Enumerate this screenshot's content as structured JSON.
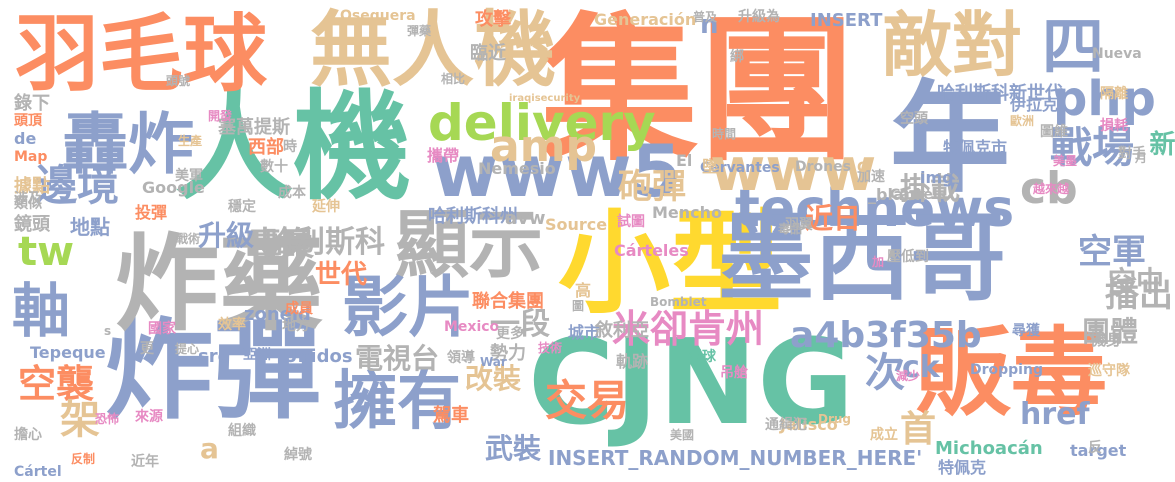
{
  "words": [
    {
      "text": "集團",
      "color": "#fc8d62"
    },
    {
      "text": "人機",
      "color": "#66c2a5"
    },
    {
      "text": "小型",
      "color": "#ffd92f"
    },
    {
      "text": "CJNG",
      "color": "#66c2a5"
    },
    {
      "text": "炸彈",
      "color": "#8da0cb"
    },
    {
      "text": "炸藥",
      "color": "#b3b3b3"
    },
    {
      "text": "墨西哥",
      "color": "#8da0cb"
    },
    {
      "text": "販毒",
      "color": "#fc8d62"
    },
    {
      "text": "羽毛球",
      "color": "#fc8d62"
    },
    {
      "text": "無人機",
      "color": "#e5c494"
    },
    {
      "text": "年",
      "color": "#8da0cb"
    },
    {
      "text": "轟炸",
      "color": "#8da0cb"
    },
    {
      "text": "敵對",
      "color": "#e5c494"
    },
    {
      "text": "顯示",
      "color": "#b3b3b3"
    },
    {
      "text": "影片",
      "color": "#8da0cb"
    },
    {
      "text": "擁有",
      "color": "#8da0cb"
    },
    {
      "text": "www5",
      "color": "#8da0cb"
    },
    {
      "text": "technews",
      "color": "#8da0cb"
    },
    {
      "text": "www",
      "color": "#e5c494"
    },
    {
      "text": "軸",
      "color": "#8da0cb"
    },
    {
      "text": "四",
      "color": "#8da0cb"
    },
    {
      "text": "delivery",
      "color": "#a6d854"
    },
    {
      "text": "交易",
      "color": "#fc8d62"
    },
    {
      "text": "米卻肯州",
      "color": "#e78ac3"
    },
    {
      "text": "php",
      "color": "#8da0cb"
    },
    {
      "text": "戰場",
      "color": "#8da0cb"
    },
    {
      "text": "邊境",
      "color": "#8da0cb"
    },
    {
      "text": "amp",
      "color": "#e5c494"
    },
    {
      "text": "cb",
      "color": "#b3b3b3"
    },
    {
      "text": "tw",
      "color": "#a6d854"
    },
    {
      "text": "a4b3f35b",
      "color": "#8da0cb"
    },
    {
      "text": "空襲",
      "color": "#fc8d62"
    },
    {
      "text": "砲彈",
      "color": "#e5c494"
    },
    {
      "text": "一段",
      "color": "#b3b3b3"
    },
    {
      "text": "空軍",
      "color": "#8da0cb"
    },
    {
      "text": "播出",
      "color": "#b3b3b3"
    },
    {
      "text": "首",
      "color": "#e5c494"
    },
    {
      "text": "毒梟",
      "color": "#b3b3b3"
    },
    {
      "text": "哈利斯科",
      "color": "#b3b3b3"
    },
    {
      "text": "升級",
      "color": "#8da0cb"
    },
    {
      "text": "近日",
      "color": "#fc8d62"
    },
    {
      "text": "掛載",
      "color": "#b3b3b3"
    },
    {
      "text": "新",
      "color": "#66c2a5"
    },
    {
      "text": "團體",
      "color": "#b3b3b3"
    },
    {
      "text": "空中",
      "color": "#b3b3b3"
    },
    {
      "text": "次",
      "color": "#8da0cb"
    },
    {
      "text": "ck",
      "color": "#8da0cb"
    },
    {
      "text": "架",
      "color": "#e5c494"
    },
    {
      "text": "世代",
      "color": "#fc8d62"
    },
    {
      "text": "電視台",
      "color": "#b3b3b3"
    },
    {
      "text": "武裝",
      "color": "#8da0cb"
    },
    {
      "text": "改裝",
      "color": "#e5c494"
    },
    {
      "text": "href",
      "color": "#8da0cb"
    },
    {
      "text": "n",
      "color": "#8da0cb"
    },
    {
      "text": "a",
      "color": "#e5c494"
    },
    {
      "text": "INSERT_RANDOM_NUMBER_HERE'",
      "color": "#8da0cb"
    },
    {
      "text": "哈利斯科新世代",
      "color": "#8da0cb"
    },
    {
      "text": "哈利斯科州",
      "color": "#8da0cb"
    },
    {
      "text": "avw",
      "color": "#b3b3b3"
    },
    {
      "text": "Michoacán",
      "color": "#66c2a5"
    },
    {
      "text": "zoneid",
      "color": "#8da0cb"
    },
    {
      "text": "src",
      "color": "#8da0cb"
    },
    {
      "text": "Unidos",
      "color": "#8da0cb"
    },
    {
      "text": "Tepeque",
      "color": "#8da0cb"
    },
    {
      "text": "INSERT",
      "color": "#8da0cb"
    },
    {
      "text": "Generación",
      "color": "#e5c494"
    },
    {
      "text": "img",
      "color": "#8da0cb"
    },
    {
      "text": "_blank'",
      "color": "#b3b3b3"
    },
    {
      "text": "target",
      "color": "#8da0cb"
    },
    {
      "text": "Jalisco",
      "color": "#e5c494"
    },
    {
      "text": "勢力",
      "color": "#b3b3b3"
    },
    {
      "text": "城市",
      "color": "#8da0cb"
    },
    {
      "text": "聯合集團",
      "color": "#fc8d62"
    },
    {
      "text": "地點",
      "color": "#8da0cb"
    },
    {
      "text": "錄下",
      "color": "#b3b3b3"
    },
    {
      "text": "攻擊",
      "color": "#fc8d62"
    },
    {
      "text": "臨近",
      "color": "#b3b3b3"
    },
    {
      "text": "塞萬提斯",
      "color": "#b3b3b3"
    },
    {
      "text": "西部",
      "color": "#fc8d62"
    },
    {
      "text": "伊拉克",
      "color": "#8da0cb"
    },
    {
      "text": "特佩克市",
      "color": "#8da0cb"
    },
    {
      "text": "特佩克",
      "color": "#8da0cb"
    },
    {
      "text": "據點",
      "color": "#e5c494"
    },
    {
      "text": "投彈",
      "color": "#fc8d62"
    },
    {
      "text": "鏡頭",
      "color": "#b3b3b3"
    },
    {
      "text": "敘利亞",
      "color": "#b3b3b3"
    },
    {
      "text": "高",
      "color": "#e5c494"
    },
    {
      "text": "駕車",
      "color": "#fc8d62"
    },
    {
      "text": "Source",
      "color": "#e5c494"
    },
    {
      "text": "Cárteles",
      "color": "#e78ac3"
    },
    {
      "text": "Mencho",
      "color": "#b3b3b3"
    },
    {
      "text": "Nemesio",
      "color": "#b3b3b3"
    },
    {
      "text": "El",
      "color": "#b3b3b3"
    },
    {
      "text": "Cervantes",
      "color": "#8da0cb"
    },
    {
      "text": "Drones",
      "color": "#b3b3b3"
    },
    {
      "text": "Google",
      "color": "#b3b3b3"
    },
    {
      "text": "Map",
      "color": "#fc8d62"
    },
    {
      "text": "de",
      "color": "#8da0cb"
    },
    {
      "text": "Cártel",
      "color": "#8da0cb"
    },
    {
      "text": "Oseguera",
      "color": "#e5c494"
    },
    {
      "text": "Nueva",
      "color": "#b3b3b3"
    },
    {
      "text": "Cartels",
      "color": "#b3b3b3"
    },
    {
      "text": "Mexico",
      "color": "#e78ac3"
    },
    {
      "text": "Bomblet",
      "color": "#b3b3b3"
    },
    {
      "text": "Dropping",
      "color": "#8da0cb"
    },
    {
      "text": "War",
      "color": "#8da0cb"
    },
    {
      "text": "Drug",
      "color": "#e5c494"
    },
    {
      "text": "iraqisecurity",
      "color": "#e5c494"
    },
    {
      "text": "機身",
      "color": "#b3b3b3"
    },
    {
      "text": "巡守隊",
      "color": "#e5c494"
    },
    {
      "text": "尋獲",
      "color": "#8da0cb"
    },
    {
      "text": "羽翼",
      "color": "#b3b3b3"
    },
    {
      "text": "羽球",
      "color": "#66c2a5"
    },
    {
      "text": "軌跡",
      "color": "#b3b3b3"
    },
    {
      "text": "試圖",
      "color": "#e78ac3"
    },
    {
      "text": "墜",
      "color": "#e5c494"
    },
    {
      "text": "攜帶",
      "color": "#e78ac3"
    },
    {
      "text": "更多",
      "color": "#b3b3b3"
    },
    {
      "text": "領導",
      "color": "#b3b3b3"
    },
    {
      "text": "亞洲",
      "color": "#8da0cb"
    },
    {
      "text": "組織",
      "color": "#b3b3b3"
    },
    {
      "text": "來源",
      "color": "#e78ac3"
    },
    {
      "text": "國家",
      "color": "#e78ac3"
    },
    {
      "text": "成員",
      "color": "#fc8d62"
    },
    {
      "text": "地方",
      "color": "#b3b3b3"
    },
    {
      "text": "效率",
      "color": "#e5c494"
    },
    {
      "text": "穩定",
      "color": "#b3b3b3"
    },
    {
      "text": "延伸",
      "color": "#e5c494"
    },
    {
      "text": "成本",
      "color": "#b3b3b3"
    },
    {
      "text": "數十",
      "color": "#b3b3b3"
    },
    {
      "text": "美軍",
      "color": "#b3b3b3"
    },
    {
      "text": "時",
      "color": "#b3b3b3"
    },
    {
      "text": "類似",
      "color": "#b3b3b3"
    },
    {
      "text": "頭頂",
      "color": "#fc8d62"
    },
    {
      "text": "生產",
      "color": "#e5c494"
    },
    {
      "text": "開發",
      "color": "#e78ac3"
    },
    {
      "text": "頭號",
      "color": "#b3b3b3"
    },
    {
      "text": "相比",
      "color": "#b3b3b3"
    },
    {
      "text": "彈藥",
      "color": "#b3b3b3"
    },
    {
      "text": "普及",
      "color": "#b3b3b3"
    },
    {
      "text": "升級為",
      "color": "#b3b3b3"
    },
    {
      "text": "綁",
      "color": "#b3b3b3"
    },
    {
      "text": "時間",
      "color": "#b3b3b3"
    },
    {
      "text": "歐洲",
      "color": "#e5c494"
    },
    {
      "text": "圖維",
      "color": "#b3b3b3"
    },
    {
      "text": "損耗",
      "color": "#e78ac3"
    },
    {
      "text": "隔離",
      "color": "#e5c494"
    },
    {
      "text": "空頭",
      "color": "#b3b3b3"
    },
    {
      "text": "對手",
      "color": "#b3b3b3"
    },
    {
      "text": "月",
      "color": "#b3b3b3"
    },
    {
      "text": "美墨",
      "color": "#e78ac3"
    },
    {
      "text": "越來越",
      "color": "#e78ac3"
    },
    {
      "text": "加速",
      "color": "#b3b3b3"
    },
    {
      "text": "毒品",
      "color": "#b3b3b3"
    },
    {
      "text": "壓低到",
      "color": "#b3b3b3"
    },
    {
      "text": "吊艙",
      "color": "#e78ac3"
    },
    {
      "text": "減少",
      "color": "#e78ac3"
    },
    {
      "text": "通緝犯",
      "color": "#b3b3b3"
    },
    {
      "text": "成立",
      "color": "#e5c494"
    },
    {
      "text": "反",
      "color": "#b3b3b3"
    },
    {
      "text": "美國",
      "color": "#b3b3b3"
    },
    {
      "text": "綽號",
      "color": "#b3b3b3"
    },
    {
      "text": "近年",
      "color": "#b3b3b3"
    },
    {
      "text": "反制",
      "color": "#fc8d62"
    },
    {
      "text": "擔心",
      "color": "#b3b3b3"
    },
    {
      "text": "恐怖",
      "color": "#e78ac3"
    },
    {
      "text": "提心",
      "color": "#b3b3b3"
    },
    {
      "text": "更",
      "color": "#b3b3b3"
    },
    {
      "text": "涉及",
      "color": "#b3b3b3"
    },
    {
      "text": "技術",
      "color": "#e78ac3"
    },
    {
      "text": "戰術",
      "color": "#b3b3b3"
    },
    {
      "text": "加",
      "color": "#e78ac3"
    },
    {
      "text": "C",
      "color": "#e5c494"
    },
    {
      "text": "s",
      "color": "#b3b3b3"
    },
    {
      "text": "圖",
      "color": "#b3b3b3"
    }
  ]
}
